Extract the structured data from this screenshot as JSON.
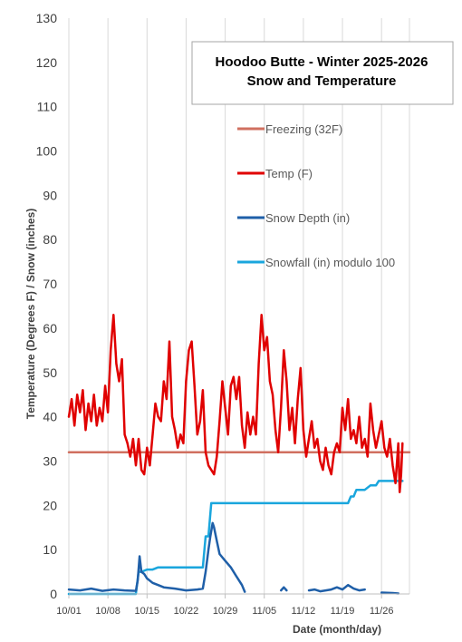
{
  "chart_data": {
    "type": "line",
    "title": [
      "Hoodoo Butte - Winter 2025-2026",
      "Snow and Temperature"
    ],
    "xlabel": "Date (month/day)",
    "ylabel": "Temperature (Degrees F)  /  Snow (inches)",
    "ylim": [
      0,
      130
    ],
    "yticks": [
      0,
      10,
      20,
      30,
      40,
      50,
      60,
      70,
      80,
      90,
      100,
      110,
      120,
      130
    ],
    "xlim": [
      "2025-10-01",
      "2025-12-01"
    ],
    "xticks": [
      {
        "date": "2025-10-01",
        "label": "10/01"
      },
      {
        "date": "2025-10-08",
        "label": "10/08"
      },
      {
        "date": "2025-10-15",
        "label": "10/15"
      },
      {
        "date": "2025-10-22",
        "label": "10/22"
      },
      {
        "date": "2025-10-29",
        "label": "10/29"
      },
      {
        "date": "2025-11-05",
        "label": "11/05"
      },
      {
        "date": "2025-11-12",
        "label": "11/12"
      },
      {
        "date": "2025-11-19",
        "label": "11/19"
      },
      {
        "date": "2025-11-26",
        "label": "11/26"
      }
    ],
    "gridlines": "vertical",
    "legend_position": "upper-right",
    "series": [
      {
        "name": "Freezing (32F)",
        "color": "#d07060",
        "width": 2.5,
        "points": [
          [
            "2025-10-01",
            32
          ],
          [
            "2025-12-01",
            32
          ]
        ]
      },
      {
        "name": "Temp (F)",
        "color": "#e00000",
        "width": 2.5,
        "points": [
          [
            "2025-10-01",
            40
          ],
          [
            "2025-10-01 12:00",
            44
          ],
          [
            "2025-10-02",
            38
          ],
          [
            "2025-10-02 12:00",
            45
          ],
          [
            "2025-10-03",
            41
          ],
          [
            "2025-10-03 12:00",
            46
          ],
          [
            "2025-10-04",
            37
          ],
          [
            "2025-10-04 12:00",
            43
          ],
          [
            "2025-10-05",
            39
          ],
          [
            "2025-10-05 12:00",
            45
          ],
          [
            "2025-10-06",
            38
          ],
          [
            "2025-10-06 12:00",
            42
          ],
          [
            "2025-10-07",
            39
          ],
          [
            "2025-10-07 12:00",
            47
          ],
          [
            "2025-10-08",
            41
          ],
          [
            "2025-10-08 12:00",
            55
          ],
          [
            "2025-10-09",
            63
          ],
          [
            "2025-10-09 12:00",
            52
          ],
          [
            "2025-10-10",
            48
          ],
          [
            "2025-10-10 12:00",
            53
          ],
          [
            "2025-10-11",
            36
          ],
          [
            "2025-10-11 12:00",
            34
          ],
          [
            "2025-10-12",
            31
          ],
          [
            "2025-10-12 12:00",
            35
          ],
          [
            "2025-10-13",
            29
          ],
          [
            "2025-10-13 12:00",
            35
          ],
          [
            "2025-10-14",
            28
          ],
          [
            "2025-10-14 12:00",
            27
          ],
          [
            "2025-10-15",
            33
          ],
          [
            "2025-10-15 12:00",
            29
          ],
          [
            "2025-10-16",
            36
          ],
          [
            "2025-10-16 12:00",
            43
          ],
          [
            "2025-10-17",
            40
          ],
          [
            "2025-10-17 12:00",
            39
          ],
          [
            "2025-10-18",
            48
          ],
          [
            "2025-10-18 12:00",
            44
          ],
          [
            "2025-10-19",
            57
          ],
          [
            "2025-10-19 12:00",
            40
          ],
          [
            "2025-10-20",
            37
          ],
          [
            "2025-10-20 12:00",
            33
          ],
          [
            "2025-10-21",
            36
          ],
          [
            "2025-10-21 12:00",
            34
          ],
          [
            "2025-10-22",
            48
          ],
          [
            "2025-10-22 12:00",
            55
          ],
          [
            "2025-10-23",
            57
          ],
          [
            "2025-10-23 12:00",
            47
          ],
          [
            "2025-10-24",
            36
          ],
          [
            "2025-10-24 12:00",
            39
          ],
          [
            "2025-10-25",
            46
          ],
          [
            "2025-10-25 12:00",
            32
          ],
          [
            "2025-10-26",
            29
          ],
          [
            "2025-10-26 12:00",
            28
          ],
          [
            "2025-10-27",
            27
          ],
          [
            "2025-10-27 12:00",
            31
          ],
          [
            "2025-10-28",
            39
          ],
          [
            "2025-10-28 12:00",
            48
          ],
          [
            "2025-10-29",
            42
          ],
          [
            "2025-10-29 12:00",
            36
          ],
          [
            "2025-10-30",
            47
          ],
          [
            "2025-10-30 12:00",
            49
          ],
          [
            "2025-10-31",
            44
          ],
          [
            "2025-10-31 12:00",
            49
          ],
          [
            "2025-11-01",
            38
          ],
          [
            "2025-11-01 12:00",
            33
          ],
          [
            "2025-11-02",
            41
          ],
          [
            "2025-11-02 12:00",
            36
          ],
          [
            "2025-11-03",
            40
          ],
          [
            "2025-11-03 12:00",
            36
          ],
          [
            "2025-11-04",
            52
          ],
          [
            "2025-11-04 12:00",
            63
          ],
          [
            "2025-11-05",
            55
          ],
          [
            "2025-11-05 12:00",
            58
          ],
          [
            "2025-11-06",
            48
          ],
          [
            "2025-11-06 12:00",
            45
          ],
          [
            "2025-11-07",
            37
          ],
          [
            "2025-11-07 12:00",
            32
          ],
          [
            "2025-11-08",
            42
          ],
          [
            "2025-11-08 12:00",
            55
          ],
          [
            "2025-11-09",
            48
          ],
          [
            "2025-11-09 12:00",
            37
          ],
          [
            "2025-11-10",
            42
          ],
          [
            "2025-11-10 12:00",
            34
          ],
          [
            "2025-11-11",
            44
          ],
          [
            "2025-11-11 12:00",
            51
          ],
          [
            "2025-11-12",
            37
          ],
          [
            "2025-11-12 12:00",
            31
          ],
          [
            "2025-11-13",
            35
          ],
          [
            "2025-11-13 12:00",
            39
          ],
          [
            "2025-11-14",
            33
          ],
          [
            "2025-11-14 12:00",
            35
          ],
          [
            "2025-11-15",
            30
          ],
          [
            "2025-11-15 12:00",
            28
          ],
          [
            "2025-11-16",
            33
          ],
          [
            "2025-11-16 12:00",
            29
          ],
          [
            "2025-11-17",
            27
          ],
          [
            "2025-11-17 12:00",
            32
          ],
          [
            "2025-11-18",
            34
          ],
          [
            "2025-11-18 12:00",
            32
          ],
          [
            "2025-11-19",
            42
          ],
          [
            "2025-11-19 12:00",
            37
          ],
          [
            "2025-11-20",
            44
          ],
          [
            "2025-11-20 12:00",
            35
          ],
          [
            "2025-11-21",
            37
          ],
          [
            "2025-11-21 12:00",
            34
          ],
          [
            "2025-11-22",
            40
          ],
          [
            "2025-11-22 12:00",
            33
          ],
          [
            "2025-11-23",
            35
          ],
          [
            "2025-11-23 12:00",
            31
          ],
          [
            "2025-11-24",
            43
          ],
          [
            "2025-11-24 12:00",
            37
          ],
          [
            "2025-11-25",
            33
          ],
          [
            "2025-11-25 12:00",
            36
          ],
          [
            "2025-11-26",
            39
          ],
          [
            "2025-11-26 12:00",
            33
          ],
          [
            "2025-11-27",
            31
          ],
          [
            "2025-11-27 12:00",
            35
          ],
          [
            "2025-11-28",
            29
          ],
          [
            "2025-11-28 12:00",
            25
          ],
          [
            "2025-11-29",
            34
          ],
          [
            "2025-11-29 6:00",
            23
          ],
          [
            "2025-11-29 12:00",
            27
          ],
          [
            "2025-11-29 18:00",
            34
          ]
        ]
      },
      {
        "name": "Snow Depth (in)",
        "color": "#1f5fa8",
        "width": 2.5,
        "segments": [
          [
            [
              "2025-10-01",
              1.0
            ],
            [
              "2025-10-03",
              0.8
            ],
            [
              "2025-10-05",
              1.2
            ],
            [
              "2025-10-07",
              0.7
            ],
            [
              "2025-10-09",
              1.0
            ],
            [
              "2025-10-11",
              0.8
            ],
            [
              "2025-10-13",
              0.7
            ],
            [
              "2025-10-13 8:00",
              3
            ],
            [
              "2025-10-13 16:00",
              8.5
            ],
            [
              "2025-10-14",
              5
            ],
            [
              "2025-10-14 12:00",
              4.5
            ],
            [
              "2025-10-15",
              3.5
            ],
            [
              "2025-10-16",
              2.5
            ],
            [
              "2025-10-17",
              2.0
            ],
            [
              "2025-10-18",
              1.5
            ],
            [
              "2025-10-20",
              1.2
            ],
            [
              "2025-10-22",
              0.8
            ],
            [
              "2025-10-24",
              1.0
            ],
            [
              "2025-10-25",
              1.2
            ],
            [
              "2025-10-25 12:00",
              5
            ],
            [
              "2025-10-26",
              10
            ],
            [
              "2025-10-26 8:00",
              13
            ],
            [
              "2025-10-26 18:00",
              16
            ],
            [
              "2025-10-27",
              15
            ],
            [
              "2025-10-27 12:00",
              12
            ],
            [
              "2025-10-28",
              9
            ],
            [
              "2025-10-29",
              7.5
            ],
            [
              "2025-10-30",
              6
            ],
            [
              "2025-10-31",
              4
            ],
            [
              "2025-11-01",
              2
            ],
            [
              "2025-11-01 12:00",
              0.5
            ]
          ],
          [
            [
              "2025-11-08",
              0.8
            ],
            [
              "2025-11-08 12:00",
              1.5
            ],
            [
              "2025-11-09",
              0.8
            ]
          ],
          [
            [
              "2025-11-13",
              0.8
            ],
            [
              "2025-11-14",
              1.0
            ],
            [
              "2025-11-15",
              0.6
            ],
            [
              "2025-11-17",
              1.0
            ],
            [
              "2025-11-18",
              1.5
            ],
            [
              "2025-11-19",
              1.0
            ],
            [
              "2025-11-20",
              2.0
            ],
            [
              "2025-11-21",
              1.2
            ],
            [
              "2025-11-22",
              0.8
            ],
            [
              "2025-11-23",
              1.0
            ]
          ],
          [
            [
              "2025-11-26",
              0.3
            ],
            [
              "2025-11-28",
              0.2
            ],
            [
              "2025-11-29",
              0.1
            ]
          ]
        ]
      },
      {
        "name": "Snowfall (in) modulo 100",
        "color": "#1aa6dd",
        "width": 2.5,
        "points": [
          [
            "2025-10-01",
            0
          ],
          [
            "2025-10-13",
            0
          ],
          [
            "2025-10-13 12:00",
            5
          ],
          [
            "2025-10-14",
            5
          ],
          [
            "2025-10-15",
            5.5
          ],
          [
            "2025-10-16",
            5.5
          ],
          [
            "2025-10-17",
            6
          ],
          [
            "2025-10-25",
            6
          ],
          [
            "2025-10-25 12:00",
            13
          ],
          [
            "2025-10-26",
            13
          ],
          [
            "2025-10-26 12:00",
            20.5
          ],
          [
            "2025-11-20",
            20.5
          ],
          [
            "2025-11-20 12:00",
            22
          ],
          [
            "2025-11-21",
            22
          ],
          [
            "2025-11-21 12:00",
            23.5
          ],
          [
            "2025-11-23",
            23.5
          ],
          [
            "2025-11-24",
            24.5
          ],
          [
            "2025-11-25",
            24.5
          ],
          [
            "2025-11-25 12:00",
            25.5
          ],
          [
            "2025-11-29 18:00",
            25.5
          ]
        ]
      }
    ]
  }
}
